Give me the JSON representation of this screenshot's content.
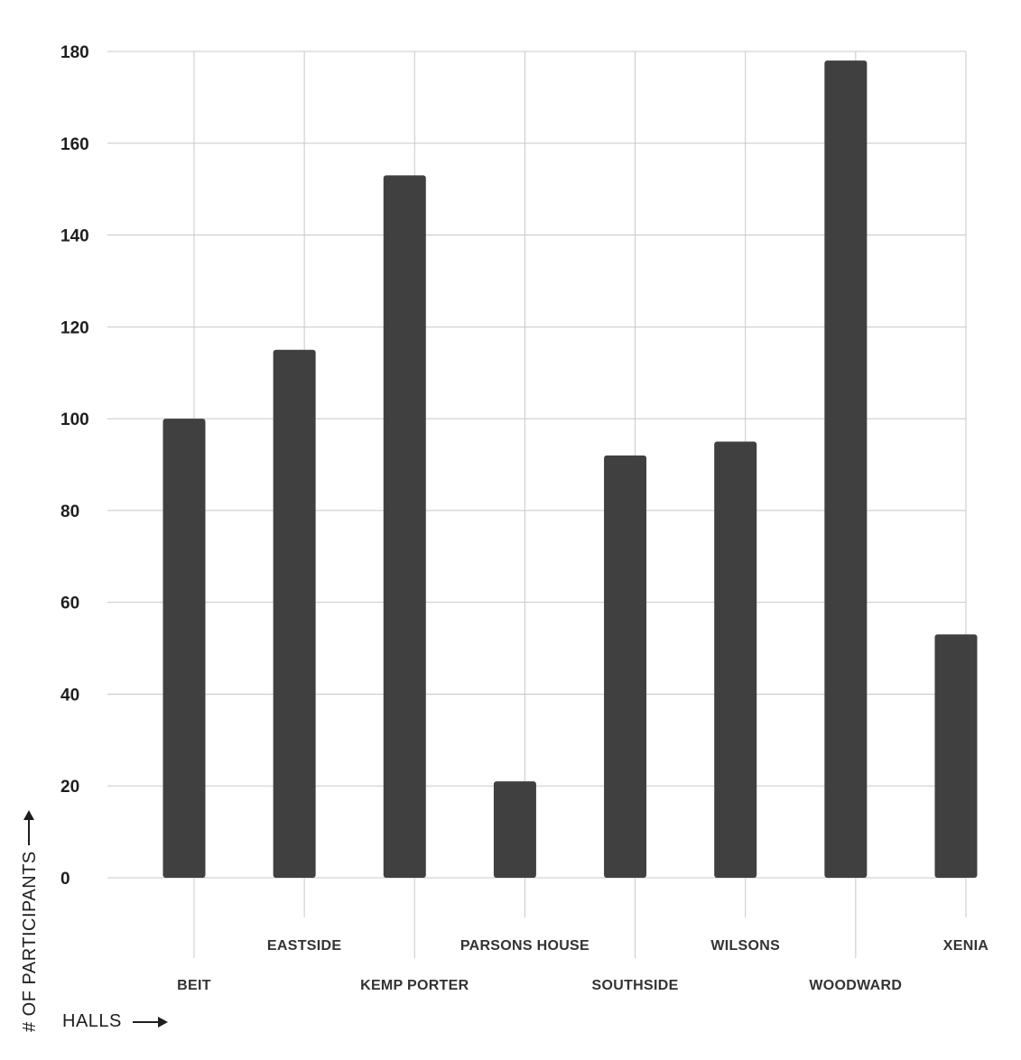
{
  "chart_data": {
    "type": "bar",
    "categories": [
      "BEIT",
      "EASTSIDE",
      "KEMP PORTER",
      "PARSONS HOUSE",
      "SOUTHSIDE",
      "WILSONS",
      "WOODWARD",
      "XENIA"
    ],
    "values": [
      100,
      115,
      153,
      21,
      92,
      95,
      178,
      53
    ],
    "xlabel": "HALLS",
    "ylabel": "# OF PARTICIPANTS",
    "ylim": [
      0,
      180
    ],
    "yticks": [
      0,
      20,
      40,
      60,
      80,
      100,
      120,
      140,
      160,
      180
    ],
    "grid": true,
    "bar_color": "#404040",
    "grid_color": "#c8c8c8"
  }
}
